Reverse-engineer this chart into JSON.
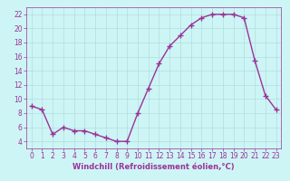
{
  "x": [
    0,
    1,
    2,
    3,
    4,
    5,
    6,
    7,
    8,
    9,
    10,
    11,
    12,
    13,
    14,
    15,
    16,
    17,
    18,
    19,
    20,
    21,
    22,
    23
  ],
  "y": [
    9,
    8.5,
    5,
    6,
    5.5,
    5.5,
    5,
    4.5,
    4,
    4,
    8,
    11.5,
    15,
    17.5,
    19,
    20.5,
    21.5,
    22,
    22,
    22,
    21.5,
    15.5,
    10.5,
    8.5
  ],
  "line_color": "#993399",
  "marker": "+",
  "marker_size": 4,
  "background_color": "#cef5f5",
  "grid_color": "#b0dede",
  "xlabel": "Windchill (Refroidissement éolien,°C)",
  "xlabel_color": "#993399",
  "tick_color": "#993399",
  "spine_color": "#993399",
  "xlim": [
    -0.5,
    23.5
  ],
  "ylim": [
    3,
    23
  ],
  "yticks": [
    4,
    6,
    8,
    10,
    12,
    14,
    16,
    18,
    20,
    22
  ],
  "xticks": [
    0,
    1,
    2,
    3,
    4,
    5,
    6,
    7,
    8,
    9,
    10,
    11,
    12,
    13,
    14,
    15,
    16,
    17,
    18,
    19,
    20,
    21,
    22,
    23
  ],
  "tick_fontsize": 5.5,
  "xlabel_fontsize": 6.0
}
